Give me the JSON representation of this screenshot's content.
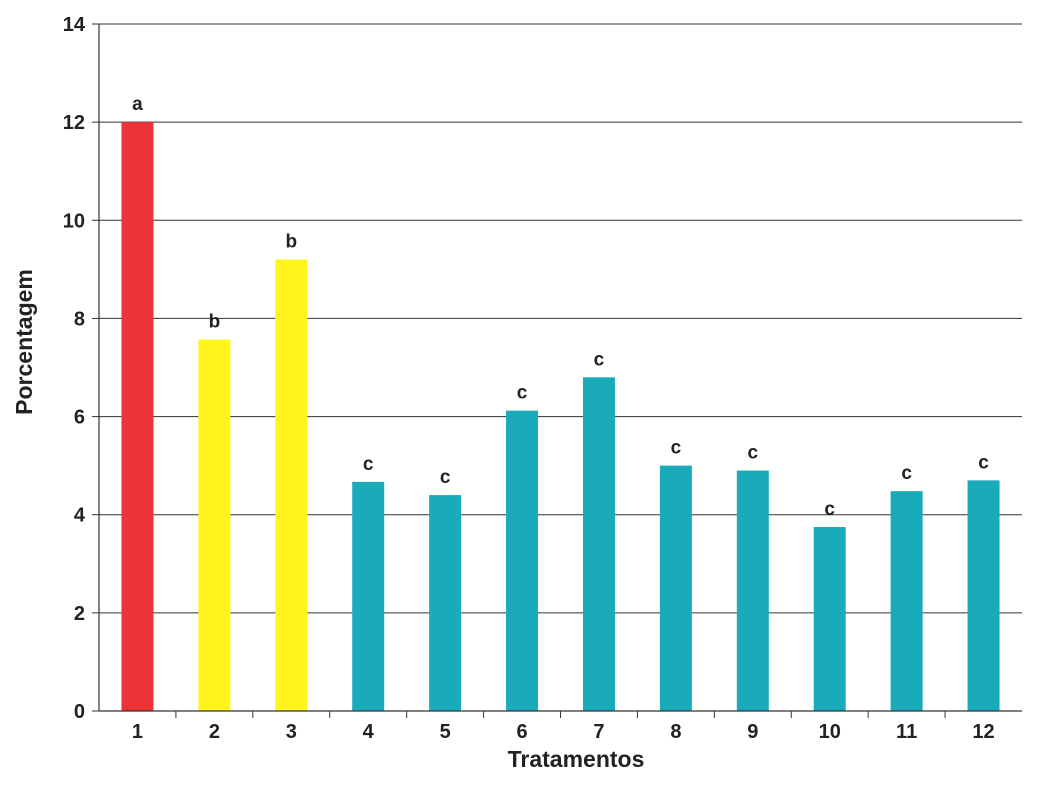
{
  "chart_data": {
    "type": "bar",
    "title": "",
    "xlabel": "Tratamentos",
    "ylabel": "Porcentagem",
    "ylim": [
      0,
      14
    ],
    "yticks": [
      0,
      2,
      4,
      6,
      8,
      10,
      12,
      14
    ],
    "grid": "horizontal",
    "categories": [
      "1",
      "2",
      "3",
      "4",
      "5",
      "6",
      "7",
      "8",
      "9",
      "10",
      "11",
      "12"
    ],
    "values": [
      12.0,
      7.57,
      9.2,
      4.67,
      4.4,
      6.12,
      6.8,
      5.0,
      4.9,
      3.75,
      4.48,
      4.7
    ],
    "letters": [
      "a",
      "b",
      "b",
      "c",
      "c",
      "c",
      "c",
      "c",
      "c",
      "c",
      "c",
      "c"
    ],
    "colors": [
      "#ee3338",
      "#fff51c",
      "#fff51c",
      "#1aabbb",
      "#1aabbb",
      "#1aabbb",
      "#1aabbb",
      "#1aabbb",
      "#1aabbb",
      "#1aabbb",
      "#1aabbb",
      "#1aabbb"
    ]
  }
}
